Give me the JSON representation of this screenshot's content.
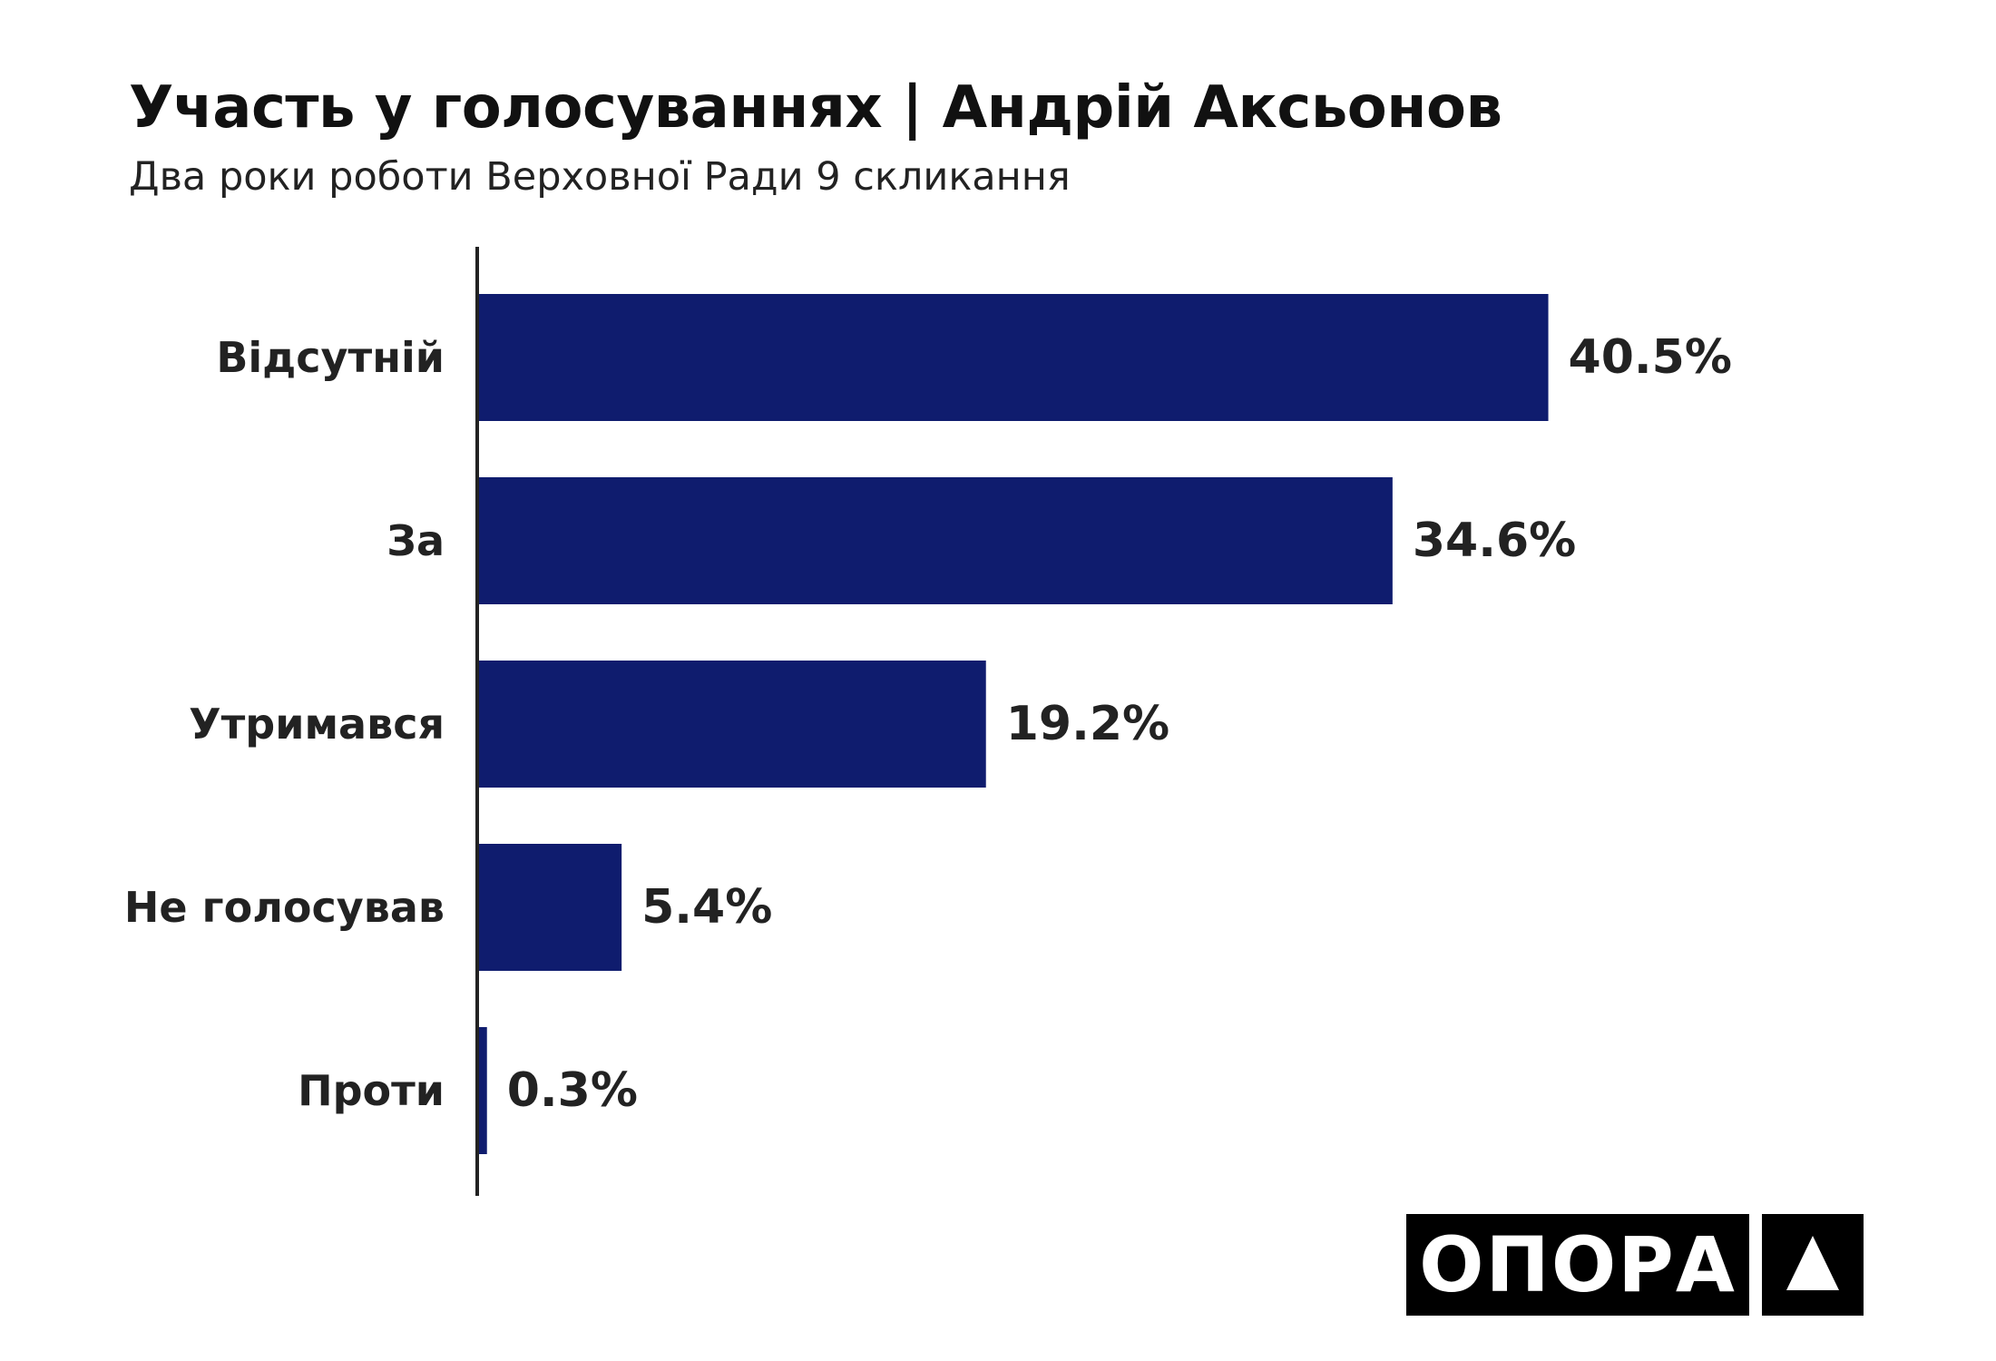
{
  "chart_data": {
    "type": "bar",
    "orientation": "horizontal",
    "title": "Участь у голосуваннях | Андрій Аксьонов",
    "subtitle": "Два роки роботи Верховної Ради 9 скликання",
    "categories": [
      "Відсутній",
      "За",
      "Утримався",
      "Не голосував",
      "Проти"
    ],
    "values": [
      40.5,
      34.6,
      19.2,
      5.4,
      0.3
    ],
    "value_labels": [
      "40.5%",
      "34.6%",
      "19.2%",
      "5.4%",
      "0.3%"
    ],
    "xlim": [
      0,
      50
    ],
    "grid": false,
    "bar_color": "#0f1c6e",
    "axis_color": "#222222"
  },
  "logo": {
    "word": "ОПОРА",
    "icon": "triangle-icon"
  }
}
